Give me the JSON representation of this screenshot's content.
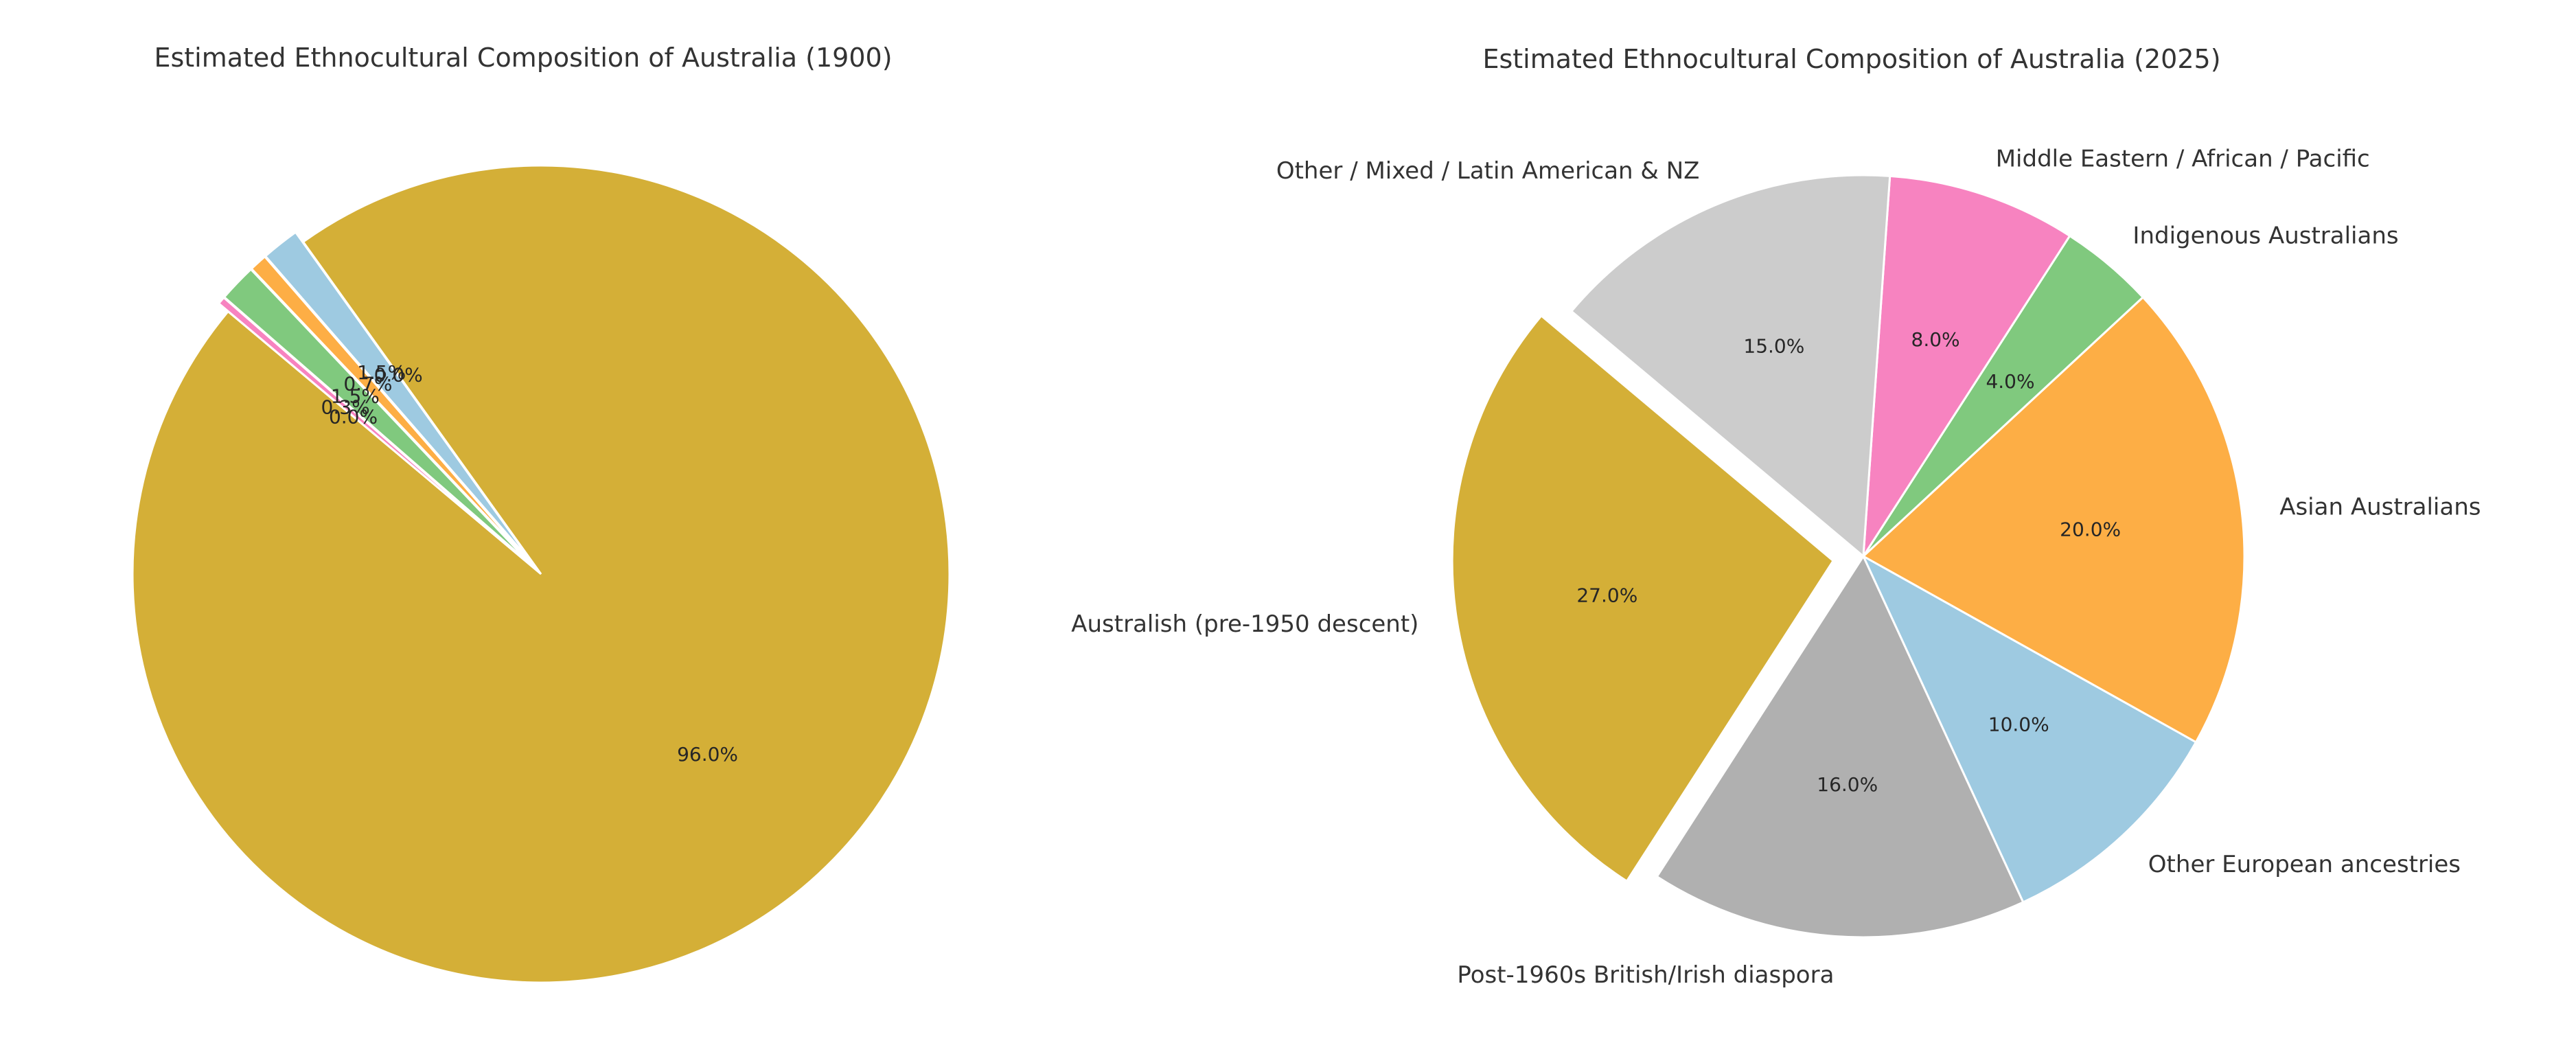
{
  "chart_data": [
    {
      "type": "pie",
      "title": "Estimated Ethnocultural Composition of Australia (1900)",
      "slices": [
        {
          "label": "Australish (pre-1950 descent)",
          "value": 96.0,
          "pct_text": "96.0%",
          "color": "#d4af37",
          "explode": 0.0,
          "show_label": false
        },
        {
          "label": "Post-1960s British/Irish diaspora",
          "value": 0.0,
          "pct_text": "0.0%",
          "color": "#b0b0b0",
          "explode": 0.0,
          "show_label": false
        },
        {
          "label": "Other European ancestries",
          "value": 1.5,
          "pct_text": "1.5%",
          "color": "#9ecae1",
          "explode": 0.03,
          "show_label": false
        },
        {
          "label": "Asian Australians",
          "value": 0.7,
          "pct_text": "0.7%",
          "color": "#fdae45",
          "explode": 0.03,
          "show_label": false
        },
        {
          "label": "Indigenous Australians",
          "value": 1.5,
          "pct_text": "1.5%",
          "color": "#80c97e",
          "explode": 0.03,
          "show_label": false
        },
        {
          "label": "Middle Eastern / African / Pacific",
          "value": 0.3,
          "pct_text": "0.3%",
          "color": "#f783c0",
          "explode": 0.03,
          "show_label": false
        },
        {
          "label": "Other / Mixed / Latin American & NZ",
          "value": 0.0,
          "pct_text": "0.0%",
          "color": "#cccccc",
          "explode": 0.0,
          "show_label": false
        }
      ]
    },
    {
      "type": "pie",
      "title": "Estimated Ethnocultural Composition of Australia (2025)",
      "slices": [
        {
          "label": "Australish (pre-1950 descent)",
          "value": 27.0,
          "pct_text": "27.0%",
          "color": "#d4af37",
          "explode": 0.08,
          "show_label": true
        },
        {
          "label": "Post-1960s British/Irish diaspora",
          "value": 16.0,
          "pct_text": "16.0%",
          "color": "#b0b0b0",
          "explode": 0.0,
          "show_label": true
        },
        {
          "label": "Other European ancestries",
          "value": 10.0,
          "pct_text": "10.0%",
          "color": "#9ecae1",
          "explode": 0.0,
          "show_label": true
        },
        {
          "label": "Asian Australians",
          "value": 20.0,
          "pct_text": "20.0%",
          "color": "#fdae45",
          "explode": 0.0,
          "show_label": true
        },
        {
          "label": "Indigenous Australians",
          "value": 4.0,
          "pct_text": "4.0%",
          "color": "#80c97e",
          "explode": 0.0,
          "show_label": true
        },
        {
          "label": "Middle Eastern / African / Pacific",
          "value": 8.0,
          "pct_text": "8.0%",
          "color": "#f783c0",
          "explode": 0.0,
          "show_label": true
        },
        {
          "label": "Other / Mixed / Latin American & NZ",
          "value": 15.0,
          "pct_text": "15.0%",
          "color": "#cccccc",
          "explode": 0.0,
          "show_label": true
        }
      ]
    }
  ]
}
